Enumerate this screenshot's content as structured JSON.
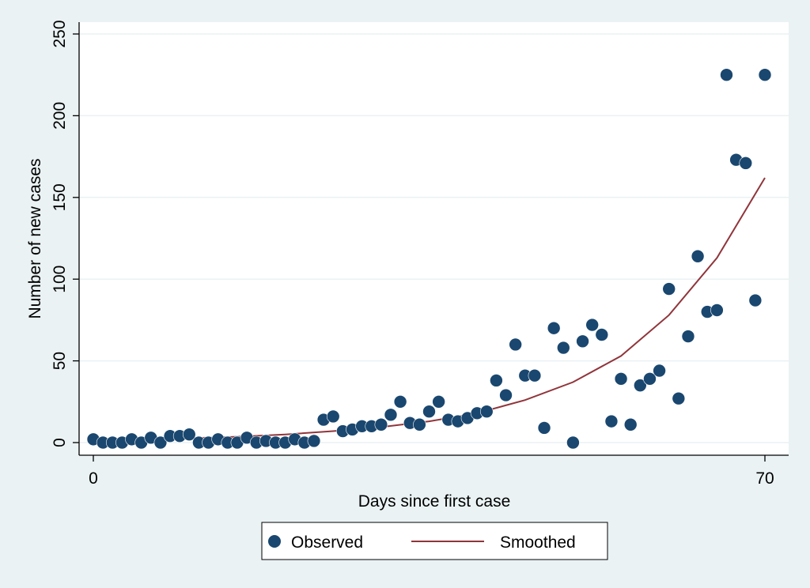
{
  "chart_data": {
    "type": "scatter",
    "title": "",
    "xlabel": "Days since first case",
    "ylabel": "Number of new cases",
    "xlim": [
      0,
      70
    ],
    "ylim": [
      0,
      250
    ],
    "xticks": [
      0,
      70
    ],
    "yticks": [
      0,
      50,
      100,
      150,
      200,
      250
    ],
    "grid": true,
    "legend_position": "bottom",
    "series": [
      {
        "name": "Observed",
        "kind": "scatter",
        "color": "#1a476f",
        "x": [
          0,
          1,
          2,
          3,
          4,
          5,
          6,
          7,
          8,
          9,
          10,
          11,
          12,
          13,
          14,
          15,
          16,
          17,
          18,
          19,
          20,
          21,
          22,
          23,
          24,
          25,
          26,
          27,
          28,
          29,
          30,
          31,
          32,
          33,
          34,
          35,
          36,
          37,
          38,
          39,
          40,
          41,
          42,
          43,
          44,
          45,
          46,
          47,
          48,
          49,
          50,
          51,
          52,
          53,
          54,
          55,
          56,
          57,
          58,
          59,
          60,
          61,
          62,
          63,
          64,
          65,
          66,
          67,
          68,
          69,
          70
        ],
        "y": [
          2,
          0,
          0,
          0,
          2,
          0,
          3,
          0,
          4,
          4,
          5,
          0,
          0,
          2,
          0,
          0,
          3,
          0,
          1,
          0,
          0,
          2,
          0,
          1,
          14,
          16,
          7,
          8,
          10,
          10,
          11,
          17,
          25,
          12,
          11,
          19,
          25,
          14,
          13,
          15,
          18,
          19,
          38,
          29,
          60,
          41,
          41,
          9,
          70,
          58,
          0,
          62,
          72,
          66,
          13,
          39,
          11,
          35,
          39,
          44,
          94,
          27,
          65,
          114,
          80,
          81,
          225,
          173,
          171,
          87,
          225
        ]
      },
      {
        "name": "Smoothed",
        "kind": "line",
        "color": "#90353b",
        "x": [
          0,
          5,
          10,
          15,
          20,
          25,
          30,
          35,
          40,
          45,
          50,
          55,
          60,
          65,
          70
        ],
        "y": [
          1.5,
          2,
          2.7,
          3.6,
          5,
          7,
          9.5,
          13,
          18,
          26,
          37,
          53,
          78,
          113,
          162
        ]
      }
    ]
  }
}
